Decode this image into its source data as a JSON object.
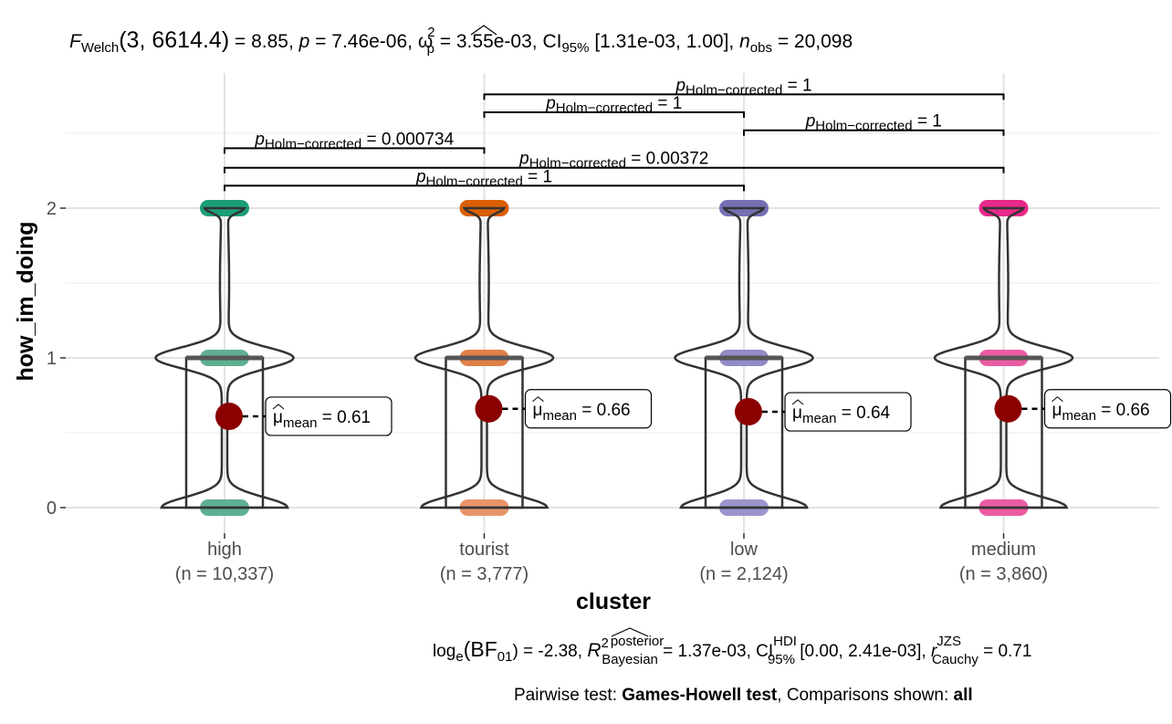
{
  "chart_data": {
    "type": "violin",
    "xlabel": "cluster",
    "ylabel": "how_im_doing",
    "ylim": [
      -0.1,
      2.85
    ],
    "y_ticks": [
      "0",
      "1",
      "2"
    ],
    "grid": true,
    "categories": [
      {
        "name": "high",
        "n_label": "(n = 10,337)",
        "color": "#1B9E77",
        "color_mid": "#5FAF91",
        "color_low": "#5FAF91",
        "mean": 0.61,
        "mean_label": "0.61"
      },
      {
        "name": "tourist",
        "n_label": "(n = 3,777)",
        "color": "#D95F02",
        "color_mid": "#E08048",
        "color_low": "#E8946A",
        "mean": 0.66,
        "mean_label": "0.66"
      },
      {
        "name": "low",
        "n_label": "(n = 2,124)",
        "color": "#7570B3",
        "color_mid": "#918CC6",
        "color_low": "#9A95CB",
        "mean": 0.64,
        "mean_label": "0.64"
      },
      {
        "name": "medium",
        "n_label": "(n = 3,860)",
        "color": "#E7298A",
        "color_mid": "#EA5CA3",
        "color_low": "#EA5CA3",
        "mean": 0.66,
        "mean_label": "0.66"
      }
    ],
    "mean_symbol": "μ",
    "mean_sub": "mean",
    "mean_eq": " = ",
    "pairwise": [
      {
        "from": 0,
        "to": 1,
        "y": 2.4,
        "p_value": "0.000734"
      },
      {
        "from": 0,
        "to": 2,
        "y": 2.15,
        "p_value": "1"
      },
      {
        "from": 0,
        "to": 3,
        "y": 2.27,
        "p_value": "0.00372"
      },
      {
        "from": 1,
        "to": 2,
        "y": 2.64,
        "p_value": "1"
      },
      {
        "from": 1,
        "to": 3,
        "y": 2.76,
        "p_value": "1"
      },
      {
        "from": 2,
        "to": 3,
        "y": 2.52,
        "p_value": "1"
      }
    ],
    "pairwise_p": "p",
    "pairwise_sub": "Holm−corrected",
    "pairwise_eq": " = "
  },
  "title": {
    "F": "F",
    "F_sub": "Welch",
    "args": "(3, 6614.4)",
    "stat": " = 8.85, ",
    "p": "p",
    "p_val": " = 7.46e-06, ",
    "omega": "ω",
    "omega_sup": "2",
    "omega_sub": "p",
    "omega_val": " = 3.55e-03, CI",
    "ci_sub": "95%",
    "ci_val": " [1.31e-03, 1.00], ",
    "n": "n",
    "n_sub": "obs",
    "n_val": " = 20,098"
  },
  "caption": {
    "log": "log",
    "log_sub": "e",
    "bf": "(BF",
    "bf_sub": "01",
    "bf_val": ") = -2.38, ",
    "r2": "R",
    "r2_sup": "2",
    "r2_sup2": "posterior",
    "r2_sub": "Bayesian",
    "r2_val": " = 1.37e-03, CI",
    "ci_sup": "HDI",
    "ci_sub": "95%",
    "ci_val": " [0.00, 2.41e-03], ",
    "r": "r",
    "r_sup": "JZS",
    "r_sub": "Cauchy",
    "r_val": " = 0.71"
  },
  "footer": {
    "prefix": "Pairwise test: ",
    "test": "Games-Howell test",
    "middle": ", Comparisons shown: ",
    "shown": "all"
  }
}
